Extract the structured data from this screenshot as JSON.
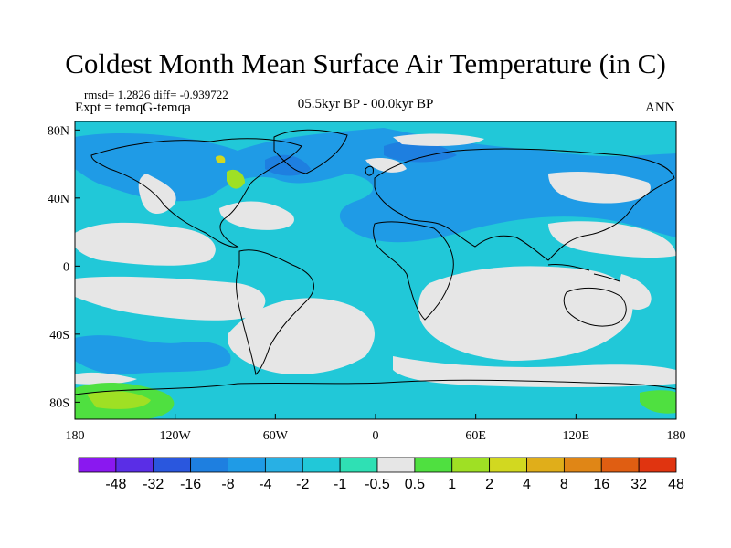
{
  "title": "Coldest Month Mean Surface Air Temperature (in C)",
  "stats": "rmsd= 1.2826 diff= -0.939722",
  "experiment": "Expt = temqG-temqa",
  "period": "05.5kyr BP - 00.0kyr BP",
  "season": "ANN",
  "axes": {
    "lat_labels": [
      {
        "text": "80N",
        "lat": 80
      },
      {
        "text": "40N",
        "lat": 40
      },
      {
        "text": "0",
        "lat": 0
      },
      {
        "text": "40S",
        "lat": -40
      },
      {
        "text": "80S",
        "lat": -80
      }
    ],
    "lon_labels": [
      {
        "text": "180",
        "lon": -180
      },
      {
        "text": "120W",
        "lon": -120
      },
      {
        "text": "60W",
        "lon": -60
      },
      {
        "text": "0",
        "lon": 0
      },
      {
        "text": "60E",
        "lon": 60
      },
      {
        "text": "120E",
        "lon": 120
      },
      {
        "text": "180",
        "lon": 180
      }
    ]
  },
  "colorbar": {
    "labels": [
      "-48",
      "-32",
      "-16",
      "-8",
      "-4",
      "-2",
      "-1",
      "-0.5",
      "0.5",
      "1",
      "2",
      "4",
      "8",
      "16",
      "32",
      "48"
    ],
    "colors": [
      "#8a18f0",
      "#5a2ee6",
      "#2a57de",
      "#1e7fe0",
      "#1f9be6",
      "#28b0e4",
      "#21c8d8",
      "#2fe0b4",
      "#e6e6e6",
      "#4fe040",
      "#9fe024",
      "#d2d820",
      "#e0ae1a",
      "#e08616",
      "#e05e12",
      "#e03410"
    ]
  },
  "map_colors": {
    "ocean_base": "#21c8d8",
    "cool": "#1f9be6",
    "cooler": "#1e7fe0",
    "neutral": "#e6e6e6",
    "warm": "#2fe0b4",
    "green": "#4fe040",
    "yellowgreen": "#9fe024",
    "yellow": "#d2d820"
  }
}
